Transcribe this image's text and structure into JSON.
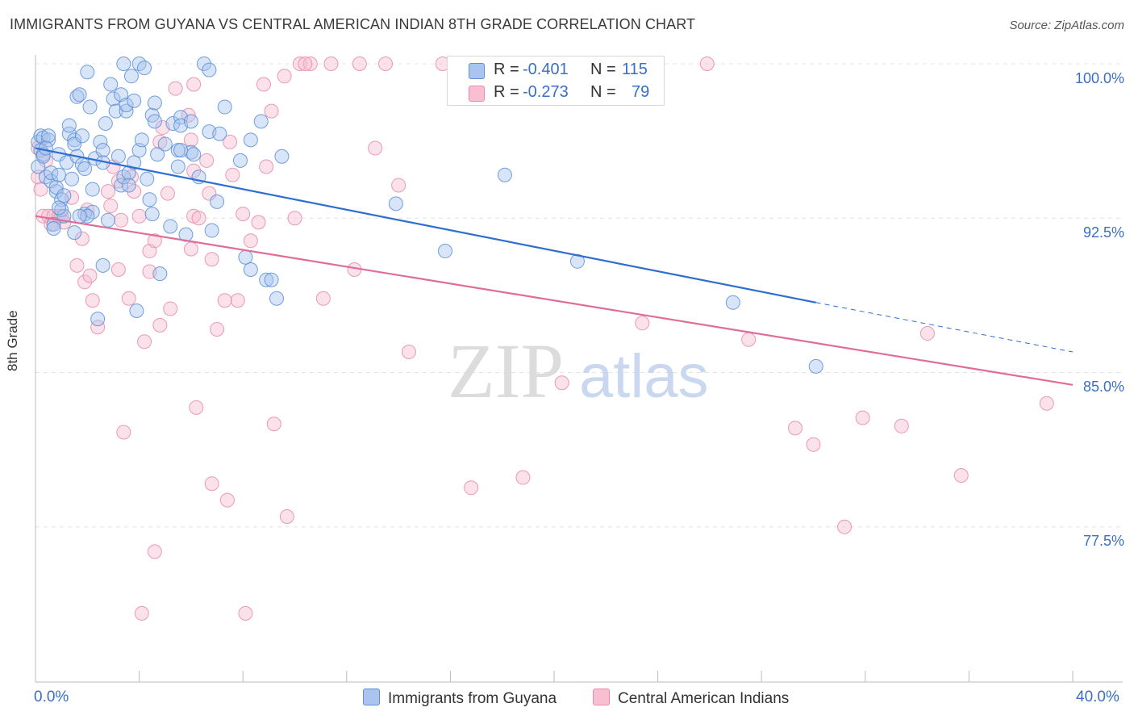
{
  "header": {
    "title": "IMMIGRANTS FROM GUYANA VS CENTRAL AMERICAN INDIAN 8TH GRADE CORRELATION CHART",
    "source": "Source: ZipAtlas.com"
  },
  "watermark": {
    "part1": "ZIP",
    "part2": "atlas"
  },
  "stats": {
    "series1": {
      "r_label": "R =",
      "r_value": "-0.401",
      "n_label": "N =",
      "n_value": "115"
    },
    "series2": {
      "r_label": "R =",
      "r_value": "-0.273",
      "n_label": "N =",
      "n_value": "79"
    }
  },
  "colors": {
    "blue_fill": "#a9c4ee",
    "blue_stroke": "#5b8fd6",
    "blue_line": "#2d6fd0",
    "pink_fill": "#f7bfd1",
    "pink_stroke": "#e88aa8",
    "pink_line": "#e06d97",
    "grid": "#e3e3e3",
    "axis_text": "#3a6fc4"
  },
  "chart_data": {
    "type": "scatter",
    "title": "IMMIGRANTS FROM GUYANA VS CENTRAL AMERICAN INDIAN 8TH GRADE CORRELATION CHART",
    "xlabel": "",
    "ylabel": "8th Grade",
    "x_tick_labels": [
      "0.0%",
      "40.0%"
    ],
    "y_tick_labels": [
      "100.0%",
      "92.5%",
      "85.0%",
      "77.5%"
    ],
    "y_ticks": [
      100.0,
      92.5,
      85.0,
      77.5
    ],
    "xlim": [
      0,
      40
    ],
    "ylim": [
      70.5,
      100.5
    ],
    "legend": [
      "Immigrants from Guyana",
      "Central American Indians"
    ],
    "legend_position": "bottom-center",
    "series": [
      {
        "name": "Immigrants from Guyana",
        "r": -0.401,
        "n": 115,
        "trend": {
          "x": [
            0,
            30.1
          ],
          "y": [
            95.9,
            88.4
          ]
        },
        "trend_dashed": {
          "x": [
            30.1,
            40
          ],
          "y": [
            88.4,
            86.0
          ]
        },
        "points": [
          [
            0.1,
            96.2
          ],
          [
            0.1,
            95.0
          ],
          [
            0.2,
            95.8
          ],
          [
            0.2,
            96.5
          ],
          [
            0.3,
            95.6
          ],
          [
            0.3,
            96.4
          ],
          [
            0.3,
            95.5
          ],
          [
            0.4,
            94.5
          ],
          [
            0.5,
            96.3
          ],
          [
            0.5,
            96.5
          ],
          [
            0.6,
            94.3
          ],
          [
            0.6,
            94.7
          ],
          [
            0.7,
            92.2
          ],
          [
            0.7,
            92.0
          ],
          [
            0.8,
            93.8
          ],
          [
            0.8,
            94.0
          ],
          [
            0.9,
            95.6
          ],
          [
            0.9,
            94.6
          ],
          [
            1.0,
            93.4
          ],
          [
            1.0,
            92.9
          ],
          [
            1.1,
            93.6
          ],
          [
            1.2,
            95.2
          ],
          [
            1.3,
            96.6
          ],
          [
            1.3,
            97.0
          ],
          [
            1.4,
            94.4
          ],
          [
            1.5,
            96.3
          ],
          [
            1.5,
            96.1
          ],
          [
            1.5,
            91.8
          ],
          [
            1.6,
            98.4
          ],
          [
            1.6,
            95.5
          ],
          [
            1.7,
            98.5
          ],
          [
            1.8,
            95.1
          ],
          [
            1.8,
            96.5
          ],
          [
            1.9,
            92.7
          ],
          [
            1.9,
            94.9
          ],
          [
            2.0,
            99.6
          ],
          [
            2.1,
            97.9
          ],
          [
            2.2,
            93.9
          ],
          [
            2.2,
            92.8
          ],
          [
            2.3,
            95.4
          ],
          [
            2.4,
            87.6
          ],
          [
            2.5,
            96.2
          ],
          [
            2.6,
            95.8
          ],
          [
            2.6,
            90.2
          ],
          [
            2.6,
            95.2
          ],
          [
            2.7,
            97.1
          ],
          [
            2.8,
            92.4
          ],
          [
            2.9,
            99.0
          ],
          [
            3.0,
            98.3
          ],
          [
            3.1,
            97.7
          ],
          [
            3.2,
            95.5
          ],
          [
            3.3,
            98.5
          ],
          [
            3.3,
            94.1
          ],
          [
            3.4,
            94.5
          ],
          [
            3.4,
            100.0
          ],
          [
            3.5,
            97.7
          ],
          [
            3.5,
            98.0
          ],
          [
            3.6,
            94.7
          ],
          [
            3.7,
            99.4
          ],
          [
            3.8,
            98.2
          ],
          [
            3.8,
            95.2
          ],
          [
            3.9,
            88.0
          ],
          [
            4.0,
            95.8
          ],
          [
            4.0,
            100.0
          ],
          [
            4.1,
            96.3
          ],
          [
            4.2,
            99.8
          ],
          [
            4.3,
            94.4
          ],
          [
            4.4,
            93.4
          ],
          [
            4.5,
            97.5
          ],
          [
            4.5,
            92.7
          ],
          [
            4.6,
            97.2
          ],
          [
            4.6,
            98.1
          ],
          [
            4.7,
            95.6
          ],
          [
            4.8,
            89.8
          ],
          [
            5.0,
            96.1
          ],
          [
            5.2,
            92.1
          ],
          [
            5.3,
            97.1
          ],
          [
            5.5,
            95.0
          ],
          [
            5.5,
            95.8
          ],
          [
            5.6,
            97.4
          ],
          [
            5.6,
            97.0
          ],
          [
            5.8,
            91.7
          ],
          [
            6.0,
            97.2
          ],
          [
            6.0,
            95.7
          ],
          [
            6.1,
            95.6
          ],
          [
            6.3,
            94.5
          ],
          [
            6.5,
            100.0
          ],
          [
            6.7,
            99.7
          ],
          [
            6.7,
            96.7
          ],
          [
            6.8,
            91.9
          ],
          [
            7.0,
            93.3
          ],
          [
            7.1,
            96.6
          ],
          [
            7.3,
            97.9
          ],
          [
            7.9,
            95.3
          ],
          [
            8.1,
            90.6
          ],
          [
            8.3,
            96.3
          ],
          [
            8.3,
            90.0
          ],
          [
            8.7,
            97.2
          ],
          [
            8.9,
            89.5
          ],
          [
            9.1,
            89.5
          ],
          [
            9.3,
            88.6
          ],
          [
            9.5,
            95.5
          ],
          [
            13.9,
            93.2
          ],
          [
            15.8,
            90.9
          ],
          [
            18.1,
            94.6
          ],
          [
            20.9,
            90.4
          ],
          [
            26.9,
            88.4
          ],
          [
            30.1,
            85.3
          ],
          [
            0.4,
            95.9
          ],
          [
            1.1,
            92.6
          ],
          [
            2.0,
            92.6
          ],
          [
            0.9,
            93.0
          ],
          [
            3.6,
            94.1
          ],
          [
            1.7,
            92.6
          ],
          [
            5.6,
            95.8
          ]
        ]
      },
      {
        "name": "Central American Indians",
        "r": -0.273,
        "n": 79,
        "trend": {
          "x": [
            0,
            40
          ],
          "y": [
            92.6,
            84.4
          ]
        },
        "points": [
          [
            0.1,
            95.9
          ],
          [
            0.1,
            94.5
          ],
          [
            0.2,
            93.9
          ],
          [
            0.3,
            92.6
          ],
          [
            0.4,
            95.3
          ],
          [
            0.5,
            92.6
          ],
          [
            0.6,
            92.2
          ],
          [
            0.7,
            92.6
          ],
          [
            0.9,
            92.6
          ],
          [
            1.0,
            92.6
          ],
          [
            1.1,
            92.3
          ],
          [
            1.4,
            93.5
          ],
          [
            1.6,
            90.2
          ],
          [
            1.8,
            91.5
          ],
          [
            1.9,
            89.4
          ],
          [
            2.0,
            92.9
          ],
          [
            2.1,
            89.7
          ],
          [
            2.2,
            88.5
          ],
          [
            2.4,
            87.2
          ],
          [
            2.8,
            93.8
          ],
          [
            2.9,
            93.1
          ],
          [
            3.0,
            95.0
          ],
          [
            3.2,
            94.3
          ],
          [
            3.2,
            90.0
          ],
          [
            3.3,
            92.4
          ],
          [
            3.6,
            88.6
          ],
          [
            3.7,
            94.5
          ],
          [
            3.8,
            93.8
          ],
          [
            4.0,
            92.6
          ],
          [
            4.4,
            90.9
          ],
          [
            4.4,
            89.9
          ],
          [
            4.6,
            91.4
          ],
          [
            4.8,
            96.2
          ],
          [
            4.8,
            87.3
          ],
          [
            5.1,
            93.7
          ],
          [
            5.2,
            88.1
          ],
          [
            5.4,
            98.8
          ],
          [
            5.9,
            97.5
          ],
          [
            6.0,
            96.3
          ],
          [
            6.1,
            99.0
          ],
          [
            6.1,
            94.8
          ],
          [
            6.1,
            92.6
          ],
          [
            6.3,
            92.5
          ],
          [
            6.6,
            95.3
          ],
          [
            6.7,
            93.7
          ],
          [
            6.8,
            90.5
          ],
          [
            7.0,
            87.1
          ],
          [
            7.3,
            88.5
          ],
          [
            7.6,
            94.6
          ],
          [
            8.0,
            92.7
          ],
          [
            8.3,
            91.4
          ],
          [
            8.8,
            99.0
          ],
          [
            9.1,
            97.7
          ],
          [
            9.6,
            99.4
          ],
          [
            10.2,
            100.0
          ],
          [
            10.6,
            100.0
          ],
          [
            11.4,
            100.0
          ],
          [
            12.5,
            100.0
          ],
          [
            13.1,
            95.9
          ],
          [
            13.5,
            100.0
          ],
          [
            14.0,
            94.1
          ],
          [
            14.4,
            86.0
          ],
          [
            15.7,
            100.0
          ],
          [
            16.8,
            79.4
          ],
          [
            18.8,
            79.9
          ],
          [
            20.3,
            84.5
          ],
          [
            23.4,
            87.4
          ],
          [
            25.9,
            100.0
          ],
          [
            27.5,
            86.6
          ],
          [
            29.3,
            82.3
          ],
          [
            30.0,
            81.5
          ],
          [
            31.2,
            77.5
          ],
          [
            31.9,
            82.8
          ],
          [
            33.4,
            82.4
          ],
          [
            34.4,
            86.9
          ],
          [
            35.7,
            80.0
          ],
          [
            39.0,
            83.5
          ],
          [
            3.4,
            82.1
          ],
          [
            4.6,
            76.3
          ]
        ]
      }
    ],
    "extra_pink_points": [
      [
        6.2,
        83.3
      ],
      [
        6.8,
        79.6
      ],
      [
        7.4,
        78.8
      ],
      [
        8.1,
        73.3
      ],
      [
        9.2,
        82.5
      ],
      [
        9.7,
        78.0
      ],
      [
        4.1,
        73.3
      ],
      [
        4.2,
        86.5
      ],
      [
        7.5,
        96.2
      ],
      [
        10.4,
        100.0
      ],
      [
        11.1,
        88.6
      ],
      [
        12.3,
        90.0
      ],
      [
        8.6,
        92.3
      ],
      [
        6.0,
        91.0
      ],
      [
        7.8,
        88.5
      ],
      [
        4.9,
        96.9
      ],
      [
        8.9,
        95.0
      ],
      [
        10.0,
        92.5
      ]
    ]
  },
  "legend_labels": {
    "series1": "Immigrants from Guyana",
    "series2": "Central American Indians"
  },
  "axis": {
    "y_title": "8th Grade",
    "x_min_label": "0.0%",
    "x_max_label": "40.0%",
    "y_labels": [
      "100.0%",
      "92.5%",
      "85.0%",
      "77.5%"
    ]
  }
}
